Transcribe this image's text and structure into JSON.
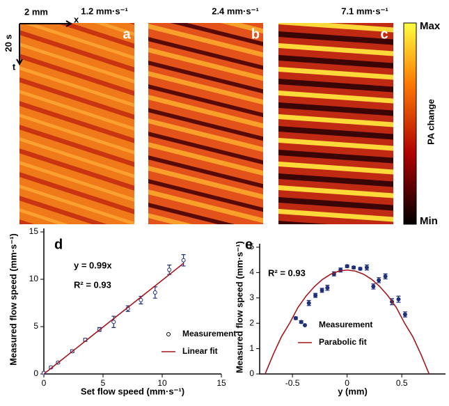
{
  "heatmaps": {
    "scale_x": "2 mm",
    "axis_x": "x",
    "scale_t": "20 s",
    "axis_t": "t",
    "panels": [
      {
        "speed": "1.2 mm·s⁻¹",
        "label": "a"
      },
      {
        "speed": "2.4 mm·s⁻¹",
        "label": "b"
      },
      {
        "speed": "7.1 mm·s⁻¹",
        "label": "c"
      }
    ],
    "colorbar": {
      "max": "Max",
      "min": "Min",
      "title": "PA change"
    }
  },
  "chart_data": [
    {
      "type": "scatter",
      "panel_label": "d",
      "xlabel": "Set flow speed (mm·s⁻¹)",
      "ylabel": "Measured flow speed (mm·s⁻¹)",
      "xlim": [
        0,
        15
      ],
      "ylim": [
        0,
        15
      ],
      "xticks": [
        0,
        5,
        10,
        15
      ],
      "yticks": [
        0,
        5,
        10,
        15
      ],
      "annotations": [
        "y = 0.99x",
        "R² = 0.93"
      ],
      "series": [
        {
          "name": "Measurement",
          "color": "#1f2f7a",
          "marker": "open",
          "x": [
            0,
            0.6,
            1.2,
            2.4,
            3.5,
            4.7,
            5.9,
            7.1,
            8.2,
            9.4,
            10.6,
            11.8
          ],
          "values": [
            0.1,
            0.7,
            1.2,
            2.4,
            3.6,
            4.7,
            5.5,
            6.9,
            7.8,
            8.6,
            11.0,
            12.0
          ],
          "errors": [
            0.1,
            0.1,
            0.1,
            0.15,
            0.15,
            0.2,
            0.6,
            0.3,
            0.4,
            0.6,
            0.5,
            0.6
          ]
        },
        {
          "name": "Linear fit",
          "color": "#a3161b",
          "x": [
            0,
            11.8
          ],
          "values": [
            0,
            11.68
          ]
        }
      ]
    },
    {
      "type": "scatter",
      "panel_label": "e",
      "xlabel": "y (mm)",
      "ylabel": "Measured flow speed (mm·s⁻¹)",
      "xlim": [
        -0.8,
        0.9
      ],
      "ylim": [
        0,
        5
      ],
      "xticks": [
        -0.5,
        0,
        0.5
      ],
      "yticks": [
        0,
        1,
        2,
        3,
        4,
        5
      ],
      "annotations": [
        "R² = 0.93"
      ],
      "series": [
        {
          "name": "Measurement",
          "color": "#1f2f7a",
          "marker": "filled",
          "x": [
            -0.47,
            -0.42,
            -0.35,
            -0.29,
            -0.23,
            -0.18,
            -0.12,
            -0.06,
            0,
            0.06,
            0.12,
            0.18,
            0.24,
            0.29,
            0.35,
            0.41,
            0.47,
            0.53
          ],
          "values": [
            2.2,
            2.05,
            2.8,
            3.1,
            3.3,
            3.4,
            3.95,
            4.1,
            4.25,
            4.2,
            4.15,
            4.2,
            3.45,
            3.7,
            3.85,
            2.85,
            2.95,
            2.35
          ],
          "errors": [
            0.05,
            0.05,
            0.1,
            0.08,
            0.08,
            0.1,
            0.08,
            0.08,
            0.05,
            0.05,
            0.05,
            0.1,
            0.1,
            0.1,
            0.1,
            0.12,
            0.12,
            0.1
          ]
        },
        {
          "name": "Parabolic fit",
          "color": "#a3161b",
          "x": [
            -0.75,
            -0.675,
            -0.6,
            -0.525,
            -0.45,
            -0.375,
            -0.3,
            -0.225,
            -0.15,
            -0.075,
            0,
            0.075,
            0.15,
            0.225,
            0.3,
            0.375,
            0.45,
            0.525,
            0.6,
            0.675,
            0.75
          ],
          "values": [
            0,
            0.779,
            1.476,
            2.009,
            2.624,
            3.075,
            3.444,
            3.731,
            3.936,
            4.059,
            4.1,
            4.059,
            3.936,
            3.731,
            3.444,
            3.075,
            2.624,
            2.009,
            1.476,
            0.779,
            0
          ]
        }
      ]
    }
  ]
}
